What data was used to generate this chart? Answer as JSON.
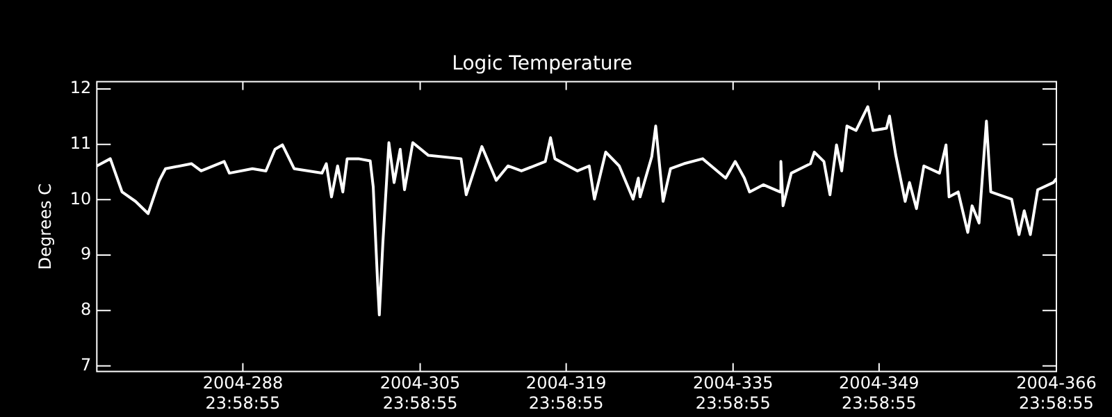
{
  "chart_data": {
    "type": "line",
    "title": "Logic Temperature",
    "ylabel": "Degrees C",
    "x": [
      "2004-10-01T00:00",
      "2004-10-02T07:00",
      "2004-10-03T10:00",
      "2004-10-04T17:00",
      "2004-10-05T22:00",
      "2004-10-07T00:00",
      "2004-10-07T14:00",
      "2004-10-10T02:00",
      "2004-10-11T00:00",
      "2004-10-13T05:00",
      "2004-10-13T17:00",
      "2004-10-15T22:00",
      "2004-10-17T05:00",
      "2004-10-18T02:00",
      "2004-10-18T19:00",
      "2004-10-19T22:00",
      "2004-10-22T14:00",
      "2004-10-23T00:00",
      "2004-10-23T12:00",
      "2004-10-24T02:00",
      "2004-10-24T14:00",
      "2004-10-25T00:00",
      "2004-10-26T02:00",
      "2004-10-27T05:00",
      "2004-10-27T12:00",
      "2004-10-27T22:00",
      "2004-10-28T02:00",
      "2004-10-28T10:00",
      "2004-10-29T00:00",
      "2004-10-29T12:00",
      "2004-10-30T02:00",
      "2004-10-30T12:00",
      "2004-10-31T07:00",
      "2004-11-01T19:00",
      "2004-11-04T22:00",
      "2004-11-05T10:00",
      "2004-11-06T22:00",
      "2004-11-08T07:00",
      "2004-11-09T10:00",
      "2004-11-10T17:00",
      "2004-11-13T00:00",
      "2004-11-13T12:00",
      "2004-11-13T22:00",
      "2004-11-16T02:00",
      "2004-11-17T05:00",
      "2004-11-17T17:00",
      "2004-11-18T19:00",
      "2004-11-20T02:00",
      "2004-11-21T10:00",
      "2004-11-21T22:00",
      "2004-11-22T02:00",
      "2004-11-23T05:00",
      "2004-11-23T14:00",
      "2004-11-24T07:00",
      "2004-11-25T00:00",
      "2004-11-26T07:00",
      "2004-11-28T02:00",
      "2004-11-30T07:00",
      "2004-12-01T05:00",
      "2004-12-02T02:00",
      "2004-12-02T14:00",
      "2004-12-03T22:00",
      "2004-12-05T12:00",
      "2004-12-05T14:00",
      "2004-12-05T19:00",
      "2004-12-06T14:00",
      "2004-12-08T10:00",
      "2004-12-08T19:00",
      "2004-12-09T17:00",
      "2004-12-10T07:00",
      "2004-12-10T22:00",
      "2004-12-11T10:00",
      "2004-12-11T22:00",
      "2004-12-12T19:00",
      "2004-12-13T22:00",
      "2004-12-14T10:00",
      "2004-12-15T17:00",
      "2004-12-16T00:00",
      "2004-12-16T14:00",
      "2004-12-17T12:00",
      "2004-12-17T22:00",
      "2004-12-18T14:00",
      "2004-12-19T07:00",
      "2004-12-20T19:00",
      "2004-12-21T10:00",
      "2004-12-21T17:00",
      "2004-12-22T14:00",
      "2004-12-23T12:00",
      "2004-12-23T22:00",
      "2004-12-24T14:00",
      "2004-12-25T07:00",
      "2004-12-25T17:00",
      "2004-12-27T17:00",
      "2004-12-28T10:00",
      "2004-12-28T22:00",
      "2004-12-29T12:00",
      "2004-12-30T05:00",
      "2004-12-31T17:00",
      "2005-01-01T00:00"
    ],
    "series": [
      {
        "color": "#ffffff",
        "values": [
          10.61,
          10.74,
          10.14,
          9.97,
          9.75,
          10.35,
          10.56,
          10.65,
          10.52,
          10.69,
          10.48,
          10.56,
          10.52,
          10.91,
          10.99,
          10.56,
          10.48,
          10.65,
          10.05,
          10.61,
          10.14,
          10.74,
          10.74,
          10.7,
          10.23,
          8.51,
          7.92,
          9.2,
          11.03,
          10.31,
          10.91,
          10.18,
          11.03,
          10.8,
          10.74,
          10.09,
          10.96,
          10.35,
          10.61,
          10.52,
          10.69,
          11.12,
          10.74,
          10.52,
          10.61,
          10.01,
          10.86,
          10.61,
          10.01,
          10.39,
          10.05,
          10.78,
          11.33,
          9.97,
          10.56,
          10.65,
          10.74,
          10.39,
          10.69,
          10.39,
          10.14,
          10.27,
          10.14,
          10.69,
          9.89,
          10.48,
          10.65,
          10.86,
          10.69,
          10.09,
          10.99,
          10.52,
          11.33,
          11.25,
          11.68,
          11.25,
          11.29,
          11.51,
          10.82,
          9.97,
          10.31,
          9.84,
          10.61,
          10.48,
          10.99,
          10.05,
          10.14,
          9.41,
          9.89,
          9.58,
          11.42,
          10.14,
          10.01,
          9.37,
          9.8,
          9.37,
          10.18,
          10.31,
          10.38
        ]
      }
    ],
    "xlim": [
      "2004-10-01T00:00",
      "2005-01-01T00:00"
    ],
    "xticks": [
      {
        "value": "2004-10-14T23:59",
        "label": "2004-288\n23:58:55"
      },
      {
        "value": "2004-10-31T23:59",
        "label": "2004-305\n23:58:55"
      },
      {
        "value": "2004-11-14T23:59",
        "label": "2004-319\n23:58:55"
      },
      {
        "value": "2004-11-30T23:59",
        "label": "2004-335\n23:58:55"
      },
      {
        "value": "2004-12-14T23:59",
        "label": "2004-349\n23:58:55"
      },
      {
        "value": "2004-12-31T23:59",
        "label": "2004-366\n23:58:55"
      }
    ],
    "ylim": [
      6.9,
      12.13
    ],
    "yticks": [
      7,
      8,
      9,
      10,
      11,
      12
    ],
    "grid": false,
    "legend": false,
    "marker": "none",
    "line_style": "solid"
  }
}
